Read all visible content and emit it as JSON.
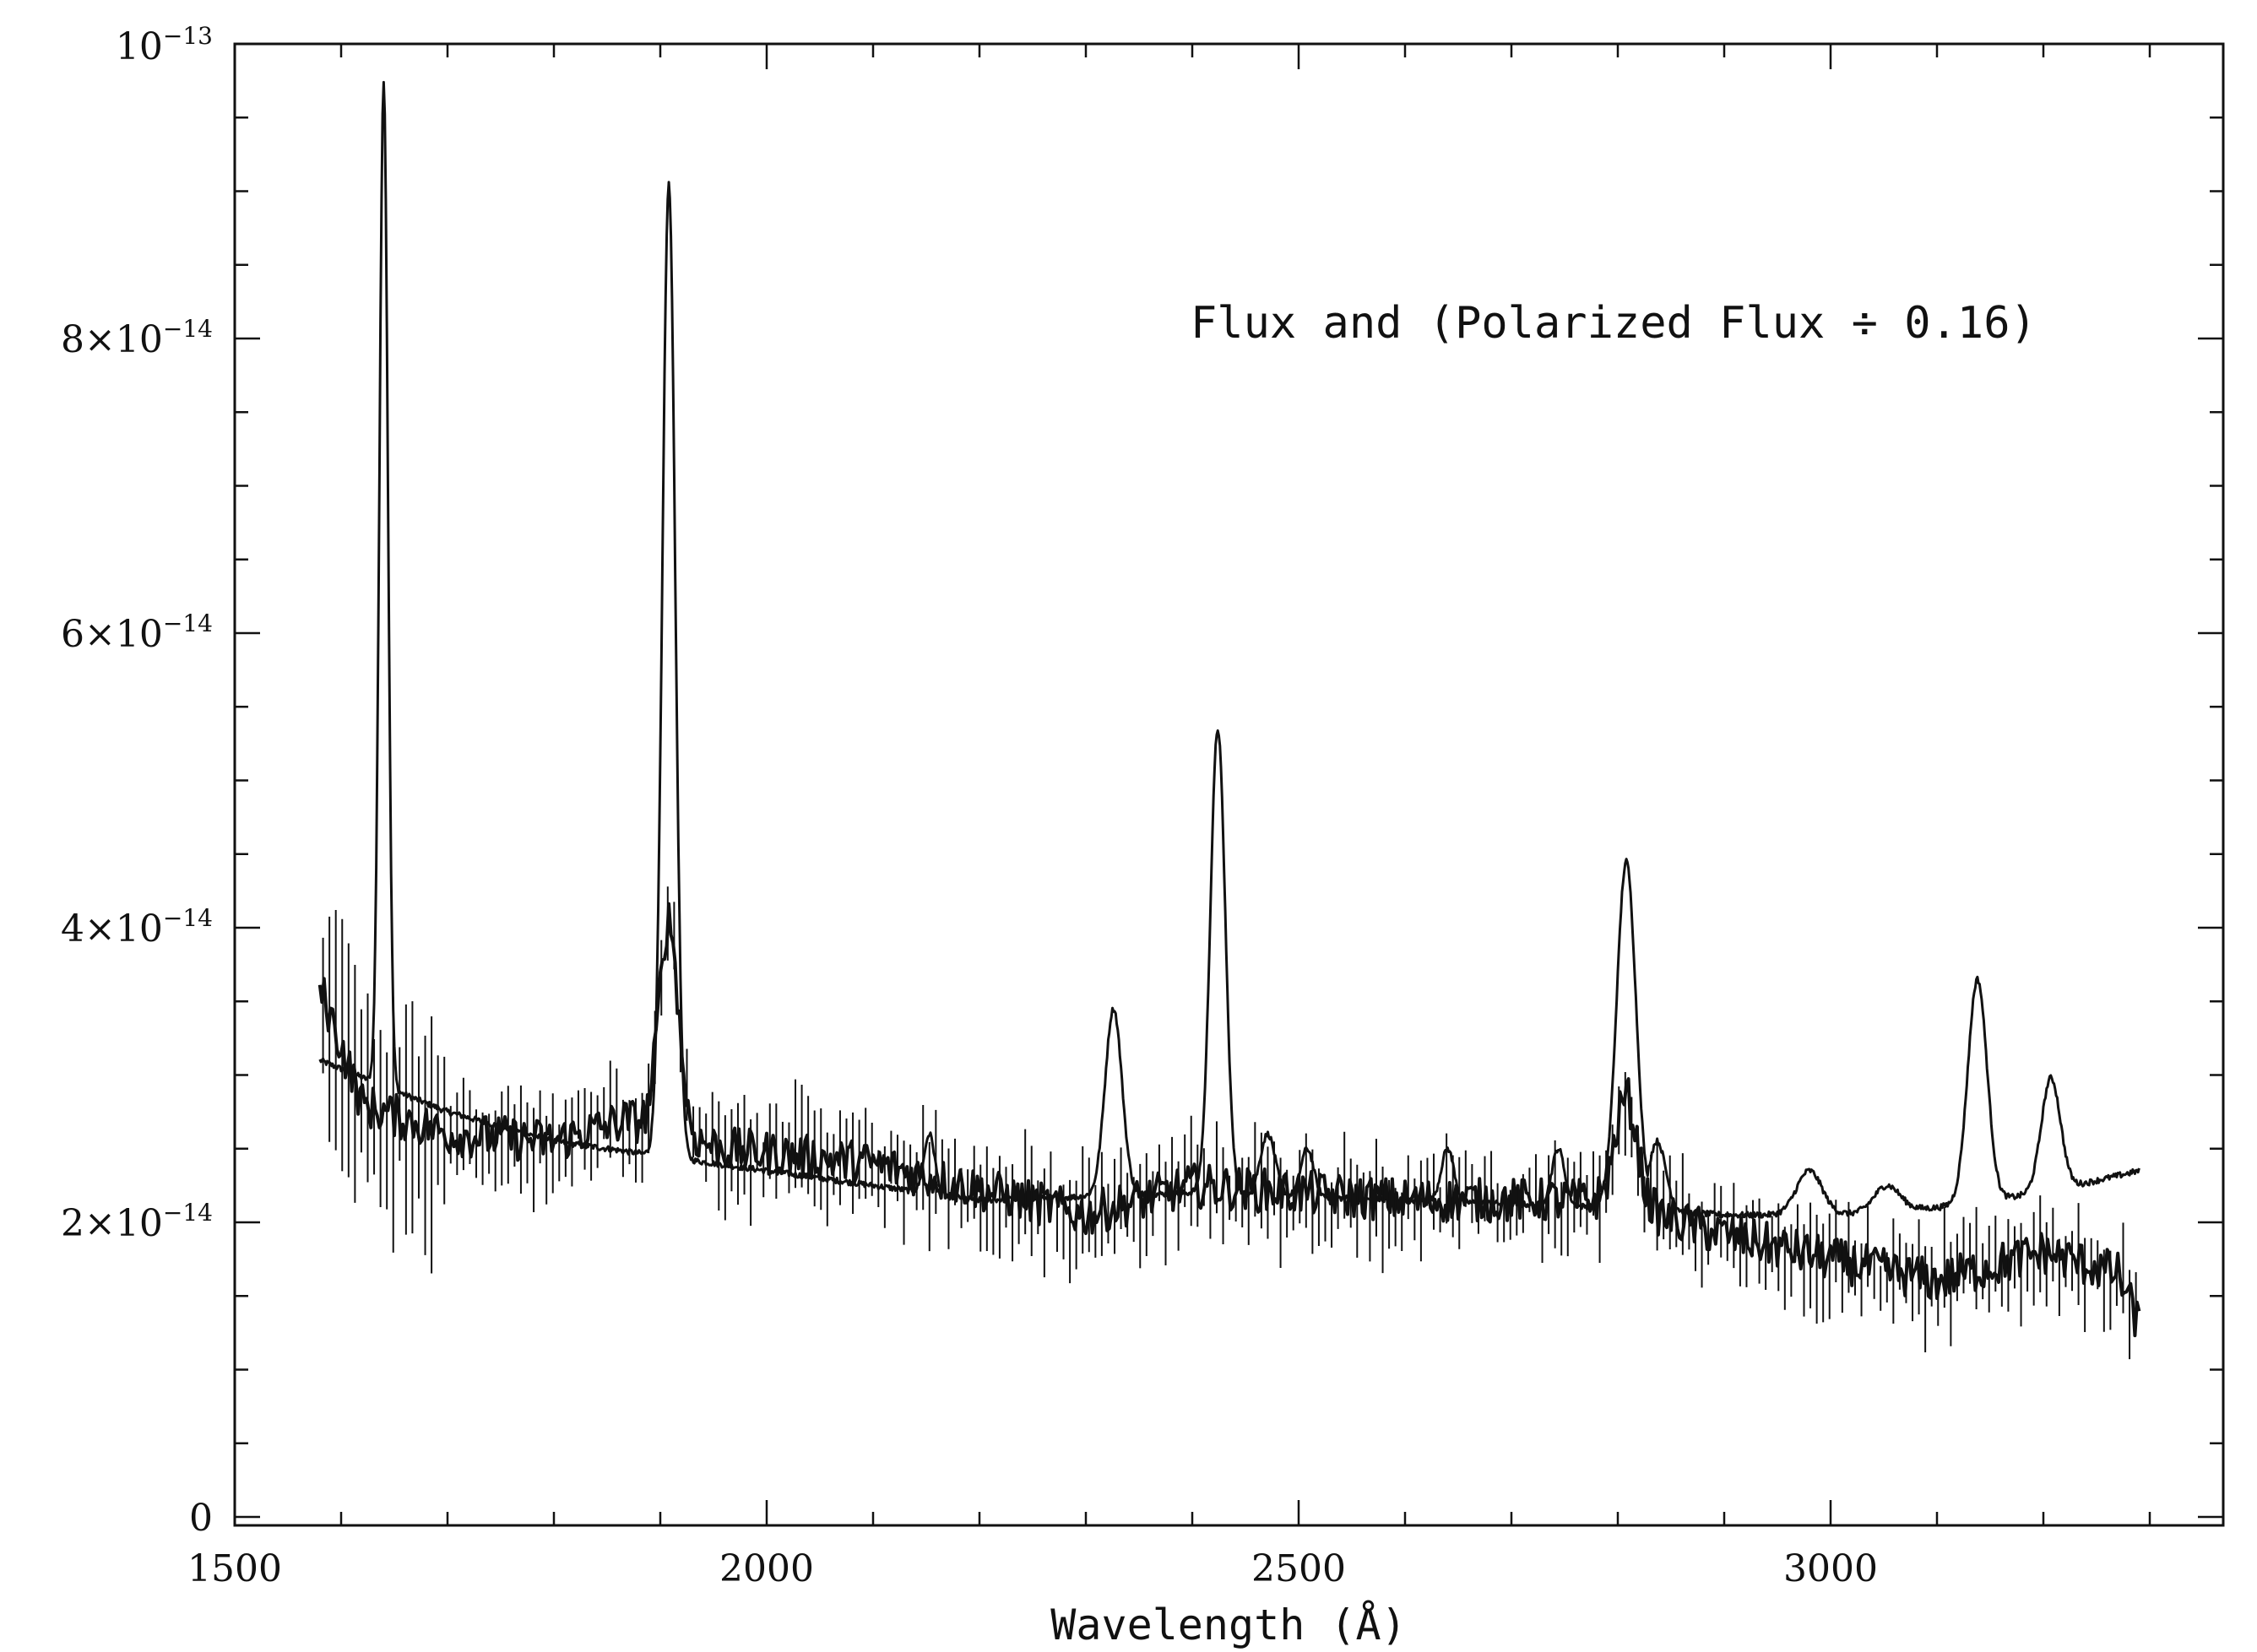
{
  "chart_data": {
    "type": "line",
    "title": "",
    "xlabel": "Wavelength (Å)",
    "ylabel": "",
    "xlim": [
      1500,
      3380
    ],
    "ylim": [
      0,
      1e-13
    ],
    "grid": false,
    "annotation": "Flux and (Polarized Flux ÷ 0.16)",
    "x_ticks": [
      {
        "value": 1500,
        "label": "1500"
      },
      {
        "value": 2000,
        "label": "2000"
      },
      {
        "value": 2500,
        "label": "2500"
      },
      {
        "value": 3000,
        "label": "3000"
      }
    ],
    "y_ticks": [
      {
        "value": 0,
        "mant": "0",
        "exp": ""
      },
      {
        "value": 2e-14,
        "mant": "2×10",
        "exp": "−14"
      },
      {
        "value": 4e-14,
        "mant": "4×10",
        "exp": "−14"
      },
      {
        "value": 6e-14,
        "mant": "6×10",
        "exp": "−14"
      },
      {
        "value": 8e-14,
        "mant": "8×10",
        "exp": "−14"
      },
      {
        "value": 1e-13,
        "mant": "10",
        "exp": "−13"
      }
    ],
    "series": [
      {
        "kind": "flux",
        "continuum": [
          [
            1580,
            3.1e-14
          ],
          [
            1700,
            2.75e-14
          ],
          [
            1800,
            2.55e-14
          ],
          [
            2000,
            2.35e-14
          ],
          [
            2200,
            2.15e-14
          ],
          [
            2400,
            2.2e-14
          ],
          [
            2600,
            2.15e-14
          ],
          [
            2800,
            2.1e-14
          ],
          [
            2900,
            2.05e-14
          ],
          [
            3000,
            2.05e-14
          ],
          [
            3100,
            2.1e-14
          ],
          [
            3200,
            2.2e-14
          ],
          [
            3290,
            2.35e-14
          ]
        ],
        "lines": [
          {
            "center": 1640,
            "peak": 9.75e-14,
            "width": 4
          },
          {
            "center": 1908,
            "peak": 9.05e-14,
            "width": 6
          },
          {
            "center": 2153,
            "peak": 2.6e-14,
            "width": 5
          },
          {
            "center": 2326,
            "peak": 3.45e-14,
            "width": 8
          },
          {
            "center": 2424,
            "peak": 5.35e-14,
            "width": 7
          },
          {
            "center": 2471,
            "peak": 2.6e-14,
            "width": 7
          },
          {
            "center": 2508,
            "peak": 2.5e-14,
            "width": 6
          },
          {
            "center": 2640,
            "peak": 2.5e-14,
            "width": 6
          },
          {
            "center": 2744,
            "peak": 2.5e-14,
            "width": 6
          },
          {
            "center": 2798,
            "peak": 2.75e-14,
            "width": 6
          },
          {
            "center": 2808,
            "peak": 4.45e-14,
            "width": 9
          },
          {
            "center": 2837,
            "peak": 2.55e-14,
            "width": 8
          },
          {
            "center": 2980,
            "peak": 2.35e-14,
            "width": 12
          },
          {
            "center": 3053,
            "peak": 2.25e-14,
            "width": 12
          },
          {
            "center": 3138,
            "peak": 3.65e-14,
            "width": 9
          },
          {
            "center": 3207,
            "peak": 2.98e-14,
            "width": 9
          }
        ]
      },
      {
        "kind": "polarized_flux_scaled",
        "continuum": [
          [
            1580,
            3.6e-14
          ],
          [
            1620,
            2.8e-14
          ],
          [
            1700,
            2.6e-14
          ],
          [
            1800,
            2.55e-14
          ],
          [
            1870,
            2.7e-14
          ],
          [
            1960,
            2.5e-14
          ],
          [
            2100,
            2.4e-14
          ],
          [
            2300,
            2.05e-14
          ],
          [
            2400,
            2.25e-14
          ],
          [
            2600,
            2.15e-14
          ],
          [
            2800,
            2.15e-14
          ],
          [
            2880,
            1.95e-14
          ],
          [
            3000,
            1.75e-14
          ],
          [
            3100,
            1.6e-14
          ],
          [
            3200,
            1.8e-14
          ],
          [
            3270,
            1.65e-14
          ],
          [
            3290,
            1.3e-14
          ]
        ],
        "lines": [
          {
            "center": 1908,
            "peak": 4.05e-14,
            "width": 9
          },
          {
            "center": 2808,
            "peak": 2.85e-14,
            "width": 10
          }
        ],
        "noise_amplitude": 2.5e-15
      }
    ]
  }
}
